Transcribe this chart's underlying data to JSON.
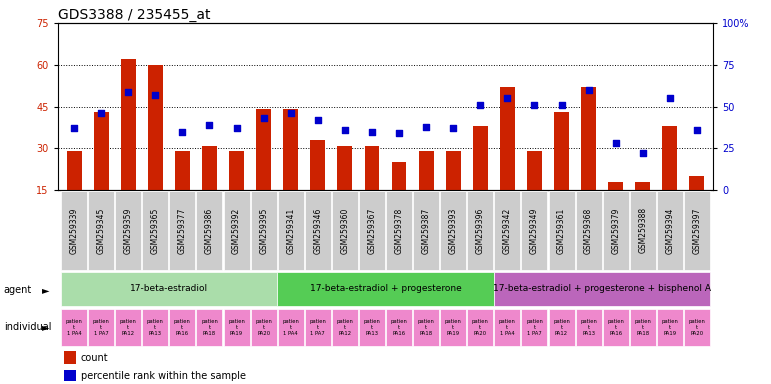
{
  "title": "GDS3388 / 235455_at",
  "gsm_labels": [
    "GSM259339",
    "GSM259345",
    "GSM259359",
    "GSM259365",
    "GSM259377",
    "GSM259386",
    "GSM259392",
    "GSM259395",
    "GSM259341",
    "GSM259346",
    "GSM259360",
    "GSM259367",
    "GSM259378",
    "GSM259387",
    "GSM259393",
    "GSM259396",
    "GSM259342",
    "GSM259349",
    "GSM259361",
    "GSM259368",
    "GSM259379",
    "GSM259388",
    "GSM259394",
    "GSM259397"
  ],
  "bar_values": [
    29,
    43,
    62,
    60,
    29,
    31,
    29,
    44,
    44,
    33,
    31,
    31,
    25,
    29,
    29,
    38,
    52,
    29,
    43,
    52,
    18,
    18,
    38,
    20
  ],
  "percentile_values": [
    37,
    46,
    59,
    57,
    35,
    39,
    37,
    43,
    46,
    42,
    36,
    35,
    34,
    38,
    37,
    51,
    55,
    51,
    51,
    60,
    28,
    22,
    55,
    36
  ],
  "bar_color": "#cc2200",
  "dot_color": "#0000cc",
  "ylim_left": [
    15,
    75
  ],
  "ylim_right": [
    0,
    100
  ],
  "yticks_left": [
    15,
    30,
    45,
    60,
    75
  ],
  "yticks_right": [
    0,
    25,
    50,
    75,
    100
  ],
  "agent_groups": [
    {
      "label": "17-beta-estradiol",
      "start": 0,
      "end": 8,
      "color": "#aaddaa"
    },
    {
      "label": "17-beta-estradiol + progesterone",
      "start": 8,
      "end": 16,
      "color": "#55cc55"
    },
    {
      "label": "17-beta-estradiol + progesterone + bisphenol A",
      "start": 16,
      "end": 24,
      "color": "#bb66bb"
    }
  ],
  "individual_color": "#ee88cc",
  "agent_label": "agent",
  "individual_label_row": "individual",
  "legend_bar_label": "count",
  "legend_dot_label": "percentile rank within the sample",
  "bg_color": "#ffffff",
  "gsm_bg_color": "#cccccc",
  "title_fontsize": 10,
  "tick_fontsize": 7,
  "n": 24
}
